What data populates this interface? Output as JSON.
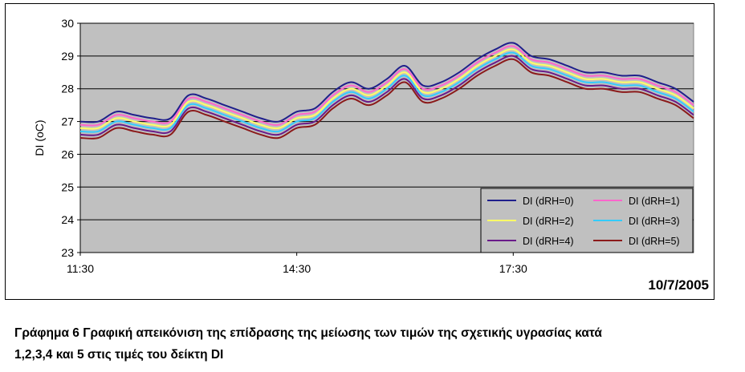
{
  "chart_data": {
    "type": "line",
    "title": "",
    "xlabel": "",
    "ylabel": "DI (oC)",
    "date_label": "10/7/2005",
    "ylim": [
      23,
      30
    ],
    "y_ticks": [
      "23",
      "24",
      "25",
      "26",
      "27",
      "28",
      "29",
      "30"
    ],
    "xlim": [
      "11:30",
      "20:00"
    ],
    "x_ticks": [
      "11:30",
      "14:30",
      "17:30"
    ],
    "grid": "horizontal",
    "legend_position": "bottom-right",
    "plot_background": "#c0c0c0",
    "x": [
      "11:30",
      "11:45",
      "12:00",
      "12:15",
      "12:30",
      "12:45",
      "13:00",
      "13:15",
      "13:30",
      "13:45",
      "14:00",
      "14:15",
      "14:30",
      "14:45",
      "15:00",
      "15:15",
      "15:30",
      "15:45",
      "16:00",
      "16:15",
      "16:30",
      "16:45",
      "17:00",
      "17:15",
      "17:30",
      "17:45",
      "18:00",
      "18:15",
      "18:30",
      "18:45",
      "19:00",
      "19:15",
      "19:30",
      "19:45",
      "20:00"
    ],
    "series": [
      {
        "name": "DI (dRH=0)",
        "color": "#1f1f8c",
        "values": [
          27.0,
          27.0,
          27.3,
          27.2,
          27.1,
          27.1,
          27.8,
          27.7,
          27.5,
          27.3,
          27.1,
          27.0,
          27.3,
          27.4,
          27.9,
          28.2,
          28.0,
          28.3,
          28.7,
          28.1,
          28.2,
          28.5,
          28.9,
          29.2,
          29.4,
          29.0,
          28.9,
          28.7,
          28.5,
          28.5,
          28.4,
          28.4,
          28.2,
          28.0,
          27.6
        ]
      },
      {
        "name": "DI (dRH=1)",
        "color": "#ff66cc",
        "values": [
          26.9,
          26.9,
          27.2,
          27.1,
          27.0,
          27.0,
          27.7,
          27.6,
          27.4,
          27.2,
          27.0,
          26.9,
          27.2,
          27.3,
          27.8,
          28.1,
          27.9,
          28.2,
          28.6,
          28.0,
          28.1,
          28.4,
          28.8,
          29.1,
          29.3,
          28.9,
          28.8,
          28.6,
          28.4,
          28.4,
          28.3,
          28.3,
          28.1,
          27.9,
          27.5
        ]
      },
      {
        "name": "DI (dRH=2)",
        "color": "#ffff66",
        "values": [
          26.8,
          26.8,
          27.1,
          27.0,
          26.9,
          26.9,
          27.6,
          27.5,
          27.3,
          27.1,
          26.9,
          26.8,
          27.1,
          27.2,
          27.7,
          28.0,
          27.8,
          28.1,
          28.5,
          27.9,
          28.0,
          28.3,
          28.7,
          29.0,
          29.2,
          28.8,
          28.7,
          28.5,
          28.3,
          28.3,
          28.2,
          28.2,
          28.0,
          27.8,
          27.4
        ]
      },
      {
        "name": "DI (dRH=3)",
        "color": "#33ccff",
        "values": [
          26.7,
          26.7,
          27.0,
          26.9,
          26.8,
          26.8,
          27.5,
          27.4,
          27.2,
          27.0,
          26.8,
          26.7,
          27.0,
          27.1,
          27.6,
          27.9,
          27.7,
          28.0,
          28.4,
          27.8,
          27.9,
          28.2,
          28.6,
          28.9,
          29.1,
          28.7,
          28.6,
          28.4,
          28.2,
          28.2,
          28.1,
          28.1,
          27.9,
          27.7,
          27.3
        ]
      },
      {
        "name": "DI (dRH=4)",
        "color": "#6a1b8a",
        "values": [
          26.6,
          26.6,
          26.9,
          26.8,
          26.7,
          26.7,
          27.4,
          27.3,
          27.1,
          26.9,
          26.7,
          26.6,
          26.9,
          27.0,
          27.5,
          27.8,
          27.6,
          27.9,
          28.3,
          27.7,
          27.8,
          28.1,
          28.5,
          28.8,
          29.0,
          28.6,
          28.5,
          28.3,
          28.1,
          28.1,
          28.0,
          28.0,
          27.8,
          27.6,
          27.2
        ]
      },
      {
        "name": "DI (dRH=5)",
        "color": "#8b1a1a",
        "values": [
          26.5,
          26.5,
          26.8,
          26.7,
          26.6,
          26.6,
          27.3,
          27.2,
          27.0,
          26.8,
          26.6,
          26.5,
          26.8,
          26.9,
          27.4,
          27.7,
          27.5,
          27.8,
          28.2,
          27.6,
          27.7,
          28.0,
          28.4,
          28.7,
          28.9,
          28.5,
          28.4,
          28.2,
          28.0,
          28.0,
          27.9,
          27.9,
          27.7,
          27.5,
          27.1
        ]
      }
    ]
  },
  "caption": {
    "line1": "Γράφημα 6 Γραφική απεικόνιση της επίδρασης της μείωσης των τιμών της σχετικής υγρασίας κατά",
    "line2": "1,2,3,4 και 5 στις τιμές του δείκτη DI"
  }
}
